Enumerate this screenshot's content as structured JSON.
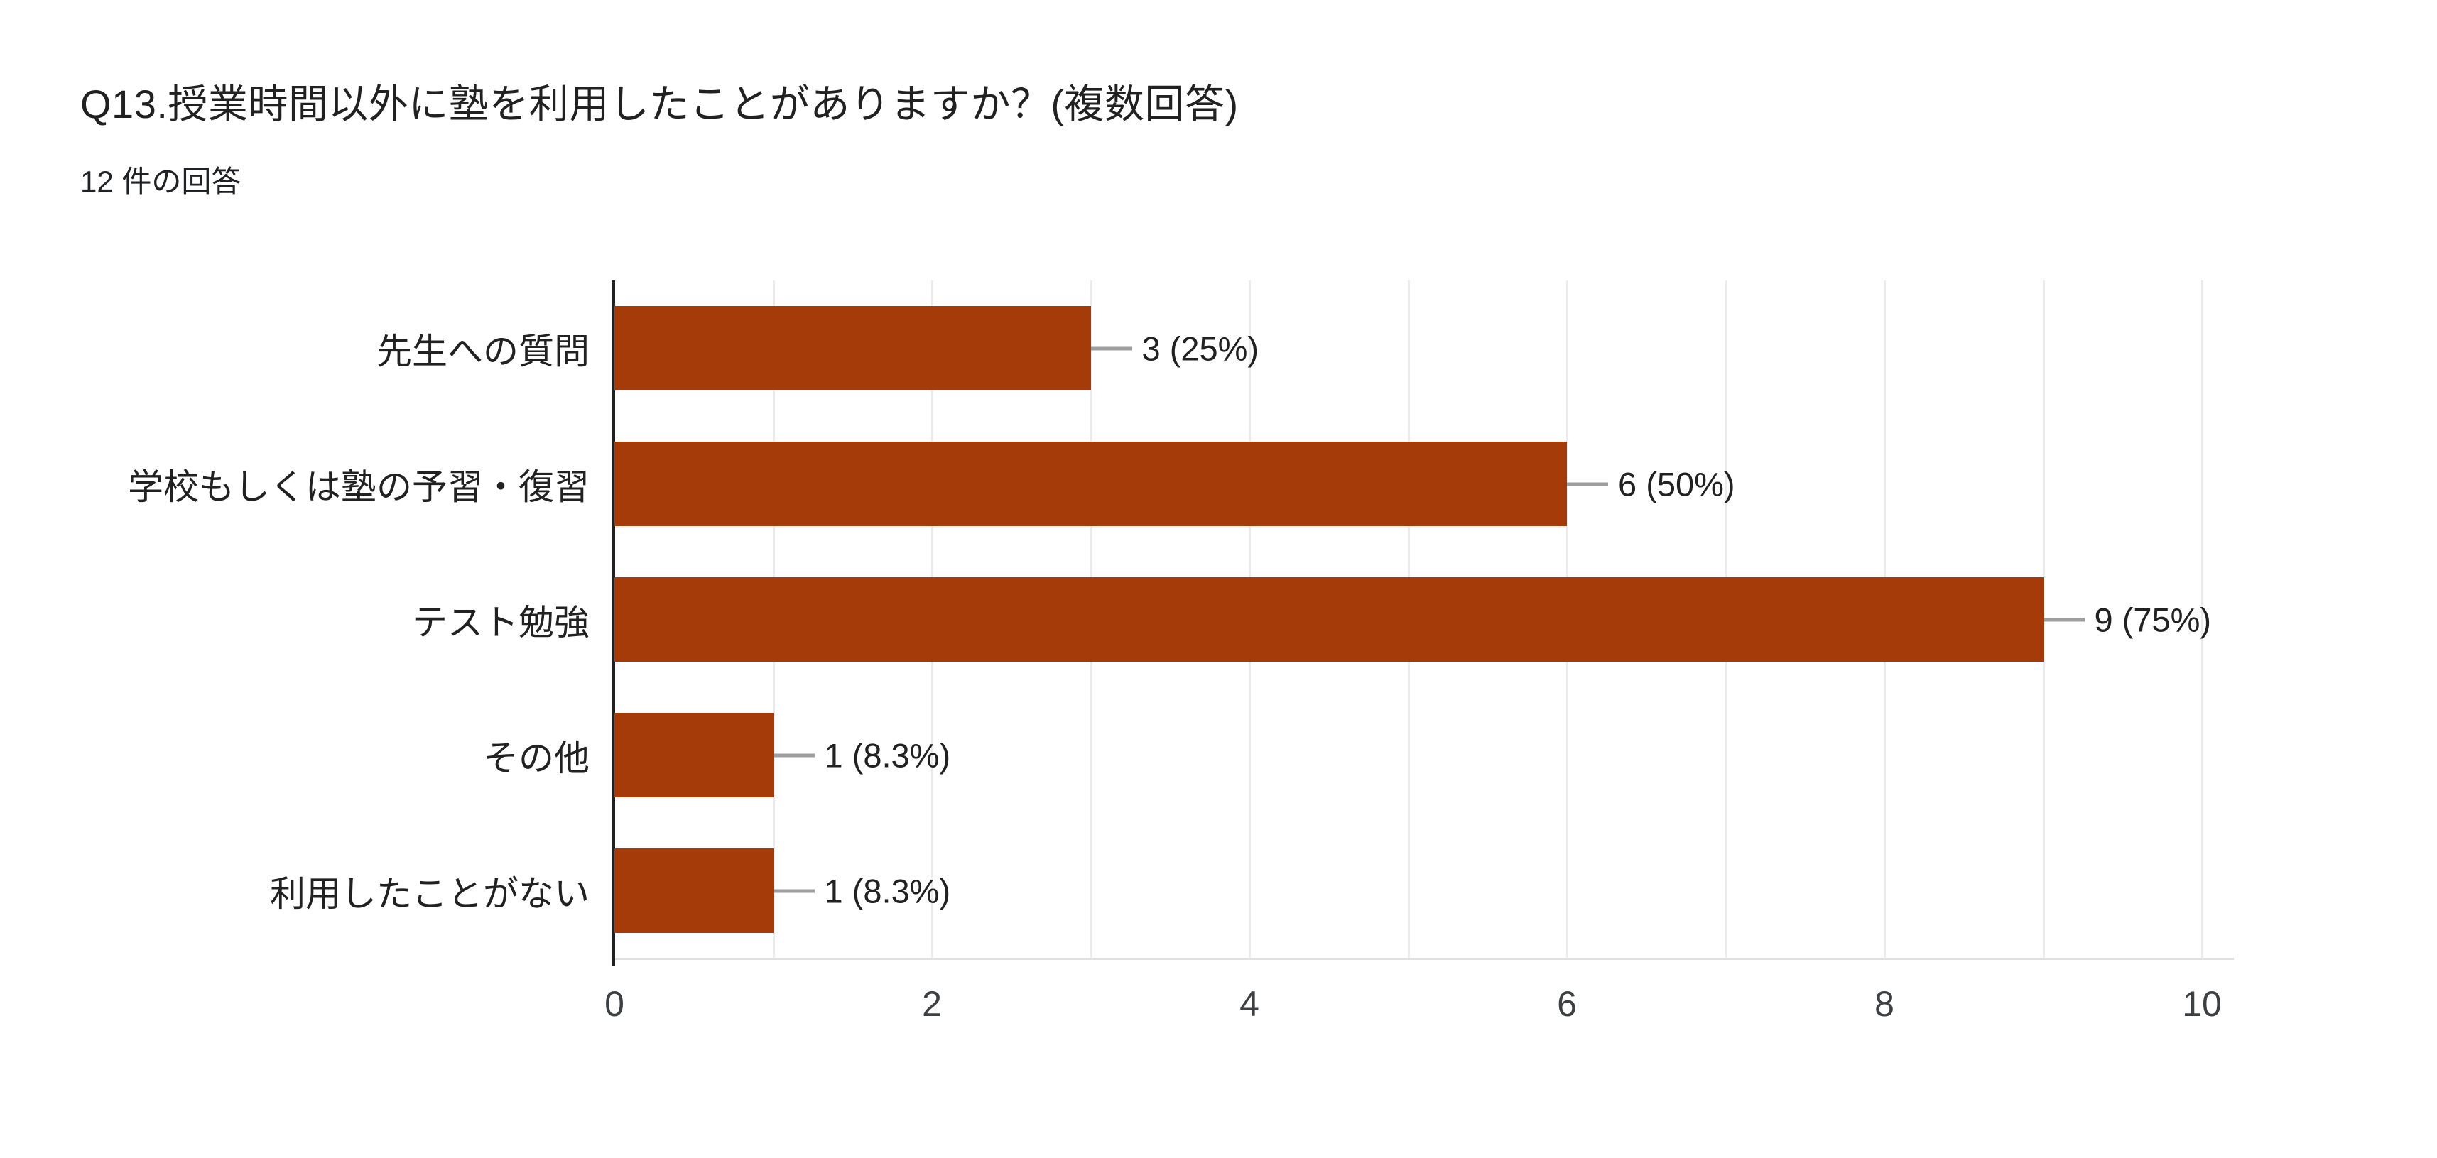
{
  "header": {
    "title": "Q13.授業時間以外に塾を利用したことがありますか？(複数回答)",
    "subtitle": "12 件の回答"
  },
  "chart_data": {
    "type": "bar",
    "orientation": "horizontal",
    "title": "Q13.授業時間以外に塾を利用したことがありますか？(複数回答)",
    "subtitle": "12 件の回答",
    "categories": [
      "先生への質問",
      "学校もしくは塾の予習・復習",
      "テスト勉強",
      "その他",
      "利用したことがない"
    ],
    "values": [
      3,
      6,
      9,
      1,
      1
    ],
    "percentages": [
      25,
      50,
      75,
      8.3,
      8.3
    ],
    "value_labels": [
      "3 (25%)",
      "6 (50%)",
      "9 (75%)",
      "1 (8.3%)",
      "1 (8.3%)"
    ],
    "xlim": [
      0,
      10
    ],
    "x_ticks": [
      0,
      2,
      4,
      6,
      8,
      10
    ],
    "gridline_step": 1,
    "grid": true,
    "legend_position": "none",
    "bar_color": "#a53b08",
    "axis_color": "#212121",
    "gridline_color": "#ebebeb",
    "baseline_color": "#e0e0e0",
    "leader_line_color": "#9e9e9e"
  }
}
